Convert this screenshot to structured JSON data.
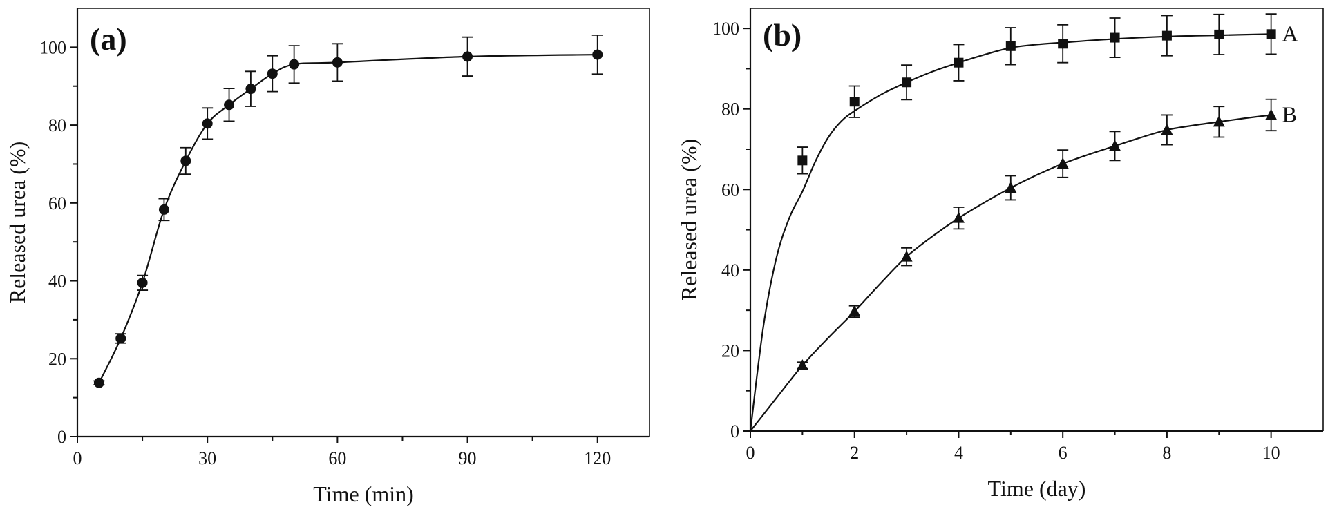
{
  "chart_data": [
    {
      "type": "line",
      "panel_label": "(a)",
      "xlabel": "Time (min)",
      "ylabel": "Released urea (%)",
      "xlim": [
        0,
        132
      ],
      "ylim": [
        0,
        110
      ],
      "xticks": [
        0,
        30,
        60,
        90,
        120
      ],
      "yticks": [
        0,
        20,
        40,
        60,
        80,
        100
      ],
      "xtick_labels": [
        "0",
        "30",
        "60",
        "90",
        "120"
      ],
      "ytick_labels": [
        "0",
        "20",
        "40",
        "60",
        "80",
        "100"
      ],
      "grid": false,
      "series": [
        {
          "marker": "circle",
          "x": [
            5,
            10,
            15,
            20,
            25,
            30,
            35,
            40,
            45,
            50,
            60,
            90,
            120
          ],
          "y": [
            13.8,
            25.2,
            39.5,
            58.3,
            70.8,
            80.4,
            85.2,
            89.3,
            93.2,
            95.6,
            96.1,
            97.6,
            98.1
          ],
          "error": [
            0.5,
            1.2,
            1.9,
            2.8,
            3.4,
            4.0,
            4.2,
            4.5,
            4.6,
            4.8,
            4.8,
            5.0,
            5.0
          ]
        }
      ]
    },
    {
      "type": "line",
      "panel_label": "(b)",
      "xlabel": "Time (day)",
      "ylabel": "Released urea (%)",
      "xlim": [
        0,
        11
      ],
      "ylim": [
        0,
        105
      ],
      "xticks": [
        0,
        2,
        4,
        6,
        8,
        10
      ],
      "yticks": [
        0,
        20,
        40,
        60,
        80,
        100
      ],
      "xtick_labels": [
        "0",
        "2",
        "4",
        "6",
        "8",
        "10"
      ],
      "ytick_labels": [
        "0",
        "20",
        "40",
        "60",
        "80",
        "100"
      ],
      "grid": false,
      "series": [
        {
          "name": "A",
          "marker": "square",
          "x": [
            1,
            2,
            3,
            4,
            5,
            6,
            7,
            8,
            9,
            10
          ],
          "y": [
            67.2,
            81.8,
            86.6,
            91.5,
            95.6,
            96.2,
            97.7,
            98.2,
            98.5,
            98.6
          ],
          "error": [
            3.3,
            3.9,
            4.3,
            4.5,
            4.6,
            4.7,
            4.9,
            5.0,
            5.0,
            5.0
          ],
          "fit_curve": {
            "x": [
              0,
              0.25,
              0.5,
              0.75,
              1,
              1.25,
              1.5,
              1.75,
              2,
              2.5,
              3,
              3.5,
              4,
              4.5,
              5,
              5.5,
              6,
              7,
              8,
              9,
              10
            ],
            "y": [
              0,
              26,
              43,
              53,
              59.5,
              67,
              73,
              77,
              79.5,
              83.5,
              86.6,
              89.3,
              91.5,
              93.5,
              95.2,
              96,
              96.5,
              97.4,
              98.0,
              98.3,
              98.6
            ]
          }
        },
        {
          "name": "B",
          "marker": "triangle",
          "x": [
            1,
            2,
            3,
            4,
            5,
            6,
            7,
            8,
            9,
            10
          ],
          "y": [
            16.3,
            29.7,
            43.3,
            52.9,
            60.4,
            66.4,
            70.8,
            74.8,
            76.8,
            78.5
          ],
          "error": [
            0.8,
            1.4,
            2.2,
            2.7,
            3.0,
            3.4,
            3.6,
            3.7,
            3.8,
            3.9
          ],
          "fit_curve": {
            "x": [
              0,
              0.5,
              1,
              1.5,
              2,
              2.5,
              3,
              3.5,
              4,
              4.5,
              5,
              5.5,
              6,
              6.5,
              7,
              7.5,
              8,
              8.5,
              9,
              9.5,
              10
            ],
            "y": [
              0,
              8.2,
              16.3,
              23.2,
              29.7,
              36.7,
              43.3,
              48.4,
              52.9,
              56.8,
              60.4,
              63.6,
              66.4,
              68.7,
              70.8,
              72.9,
              74.8,
              75.9,
              76.8,
              77.7,
              78.5
            ]
          }
        }
      ]
    }
  ]
}
